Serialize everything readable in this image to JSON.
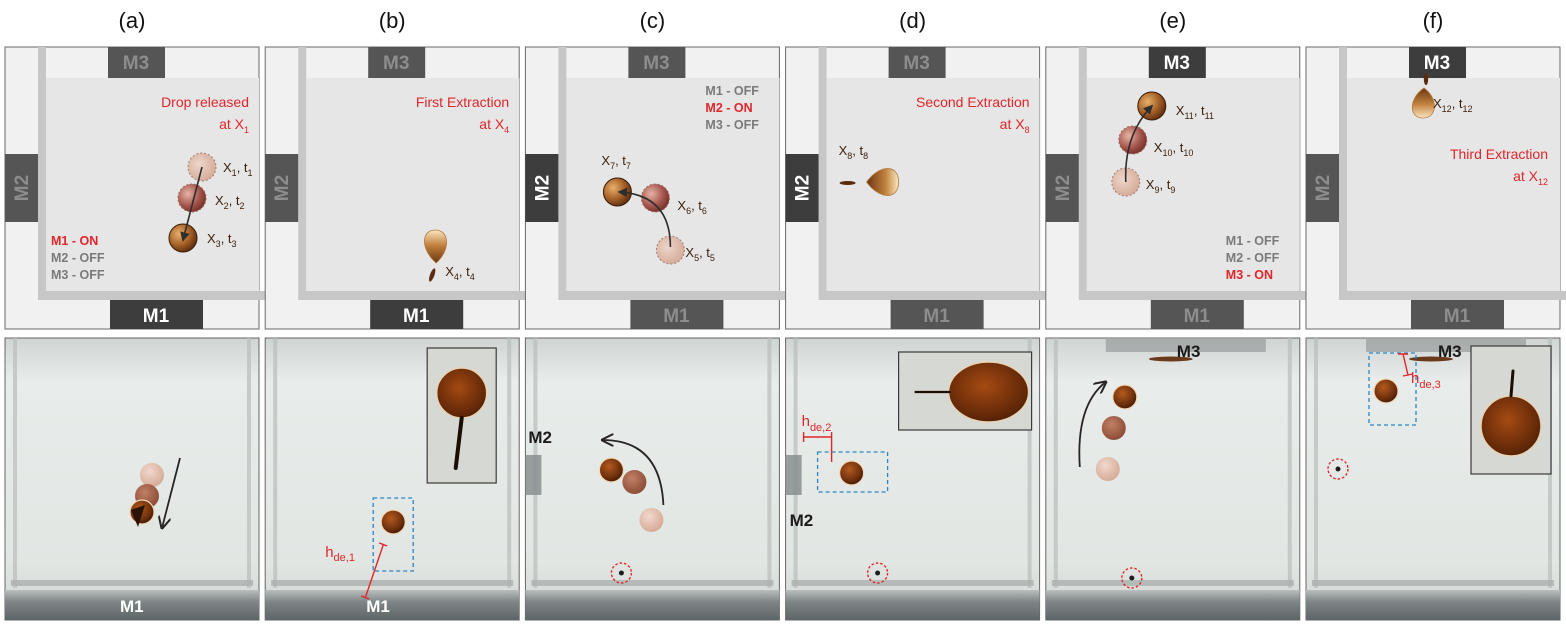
{
  "colors": {
    "outer_frame": "#f1f1f1",
    "wall": "#c7c7c7",
    "chamber": "#e6e6e6",
    "magnet_on": "#3d3d3d",
    "magnet_off": "#555555",
    "label_off": "#7a7a7a",
    "highlight": "#e0262b",
    "drop_dark": "#5a2c0c",
    "drop_light": "#d79a55",
    "photo_bg": "#e4e8e6",
    "photo_floor": "#8a9090",
    "dashed_box": "#2a86c8"
  },
  "panels": [
    {
      "label": "(a)",
      "magnets": {
        "M1": "M1",
        "M2": "M2",
        "M3": "M3",
        "active": "M1"
      },
      "annotation": [
        "Drop released",
        "at X₁"
      ],
      "status": [
        "M1 - ON",
        "M2 - OFF",
        "M3 - OFF"
      ],
      "points": [
        "X₁, t₁",
        "X₂, t₂",
        "X₃, t₃"
      ],
      "photo_labels": [
        "M1"
      ]
    },
    {
      "label": "(b)",
      "magnets": {
        "M1": "M1",
        "M2": "M2",
        "M3": "M3",
        "active": "M1"
      },
      "annotation": [
        "First Extraction",
        "at X₄"
      ],
      "points": [
        "X₄, t₄"
      ],
      "photo_labels": [
        "M1",
        "h",
        "de,1"
      ]
    },
    {
      "label": "(c)",
      "magnets": {
        "M1": "M1",
        "M2": "M2",
        "M3": "M3",
        "active": "M2"
      },
      "status": [
        "M1 - OFF",
        "M2 - ON",
        "M3 - OFF"
      ],
      "points": [
        "X₅, t₅",
        "X₆, t₆",
        "X₇, t₇"
      ],
      "photo_labels": [
        "M2"
      ]
    },
    {
      "label": "(d)",
      "magnets": {
        "M1": "M1",
        "M2": "M2",
        "M3": "M3",
        "active": "M2"
      },
      "annotation": [
        "Second Extraction",
        "at X₈"
      ],
      "points": [
        "X₈, t₈"
      ],
      "photo_labels": [
        "M2",
        "h",
        "de,2"
      ]
    },
    {
      "label": "(e)",
      "magnets": {
        "M1": "M1",
        "M2": "M2",
        "M3": "M3",
        "active": "M3"
      },
      "status": [
        "M1 - OFF",
        "M2 - OFF",
        "M3 - ON"
      ],
      "points": [
        "X₉, t₉",
        "X₁₀, t₁₀",
        "X₁₁, t₁₁"
      ],
      "photo_labels": [
        "M3"
      ]
    },
    {
      "label": "(f)",
      "magnets": {
        "M1": "M1",
        "M2": "M2",
        "M3": "M3",
        "active": "M3"
      },
      "annotation": [
        "Third Extraction",
        "at X₁₂"
      ],
      "points": [
        "X₁₂, t₁₂"
      ],
      "photo_labels": [
        "M3",
        "h",
        "de,3"
      ]
    }
  ]
}
